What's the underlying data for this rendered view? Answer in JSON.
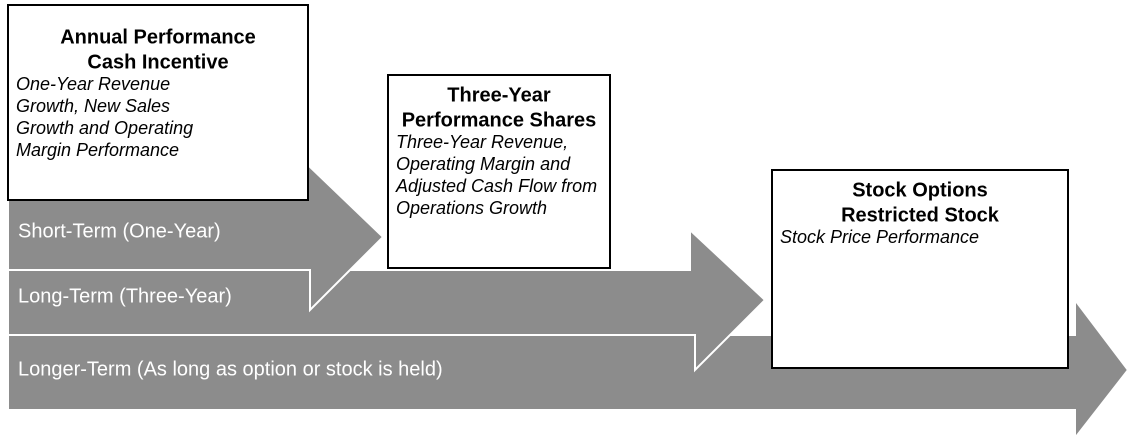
{
  "arrows": [
    "Short-Term (One-Year)",
    "Long-Term (Three-Year)",
    "Longer-Term (As long as option or stock is held)"
  ],
  "boxes": [
    {
      "title": [
        "Annual Performance",
        "Cash Incentive"
      ],
      "description": [
        "One-Year Revenue",
        "Growth, New Sales",
        "Growth and Operating",
        "Margin Performance"
      ]
    },
    {
      "title": [
        "Three-Year",
        "Performance Shares"
      ],
      "description": [
        "Three-Year Revenue,",
        "Operating Margin and",
        "Adjusted Cash Flow from",
        "Operations Growth"
      ]
    },
    {
      "title": [
        "Stock Options",
        "Restricted Stock"
      ],
      "description": [
        "Stock Price Performance"
      ]
    }
  ]
}
